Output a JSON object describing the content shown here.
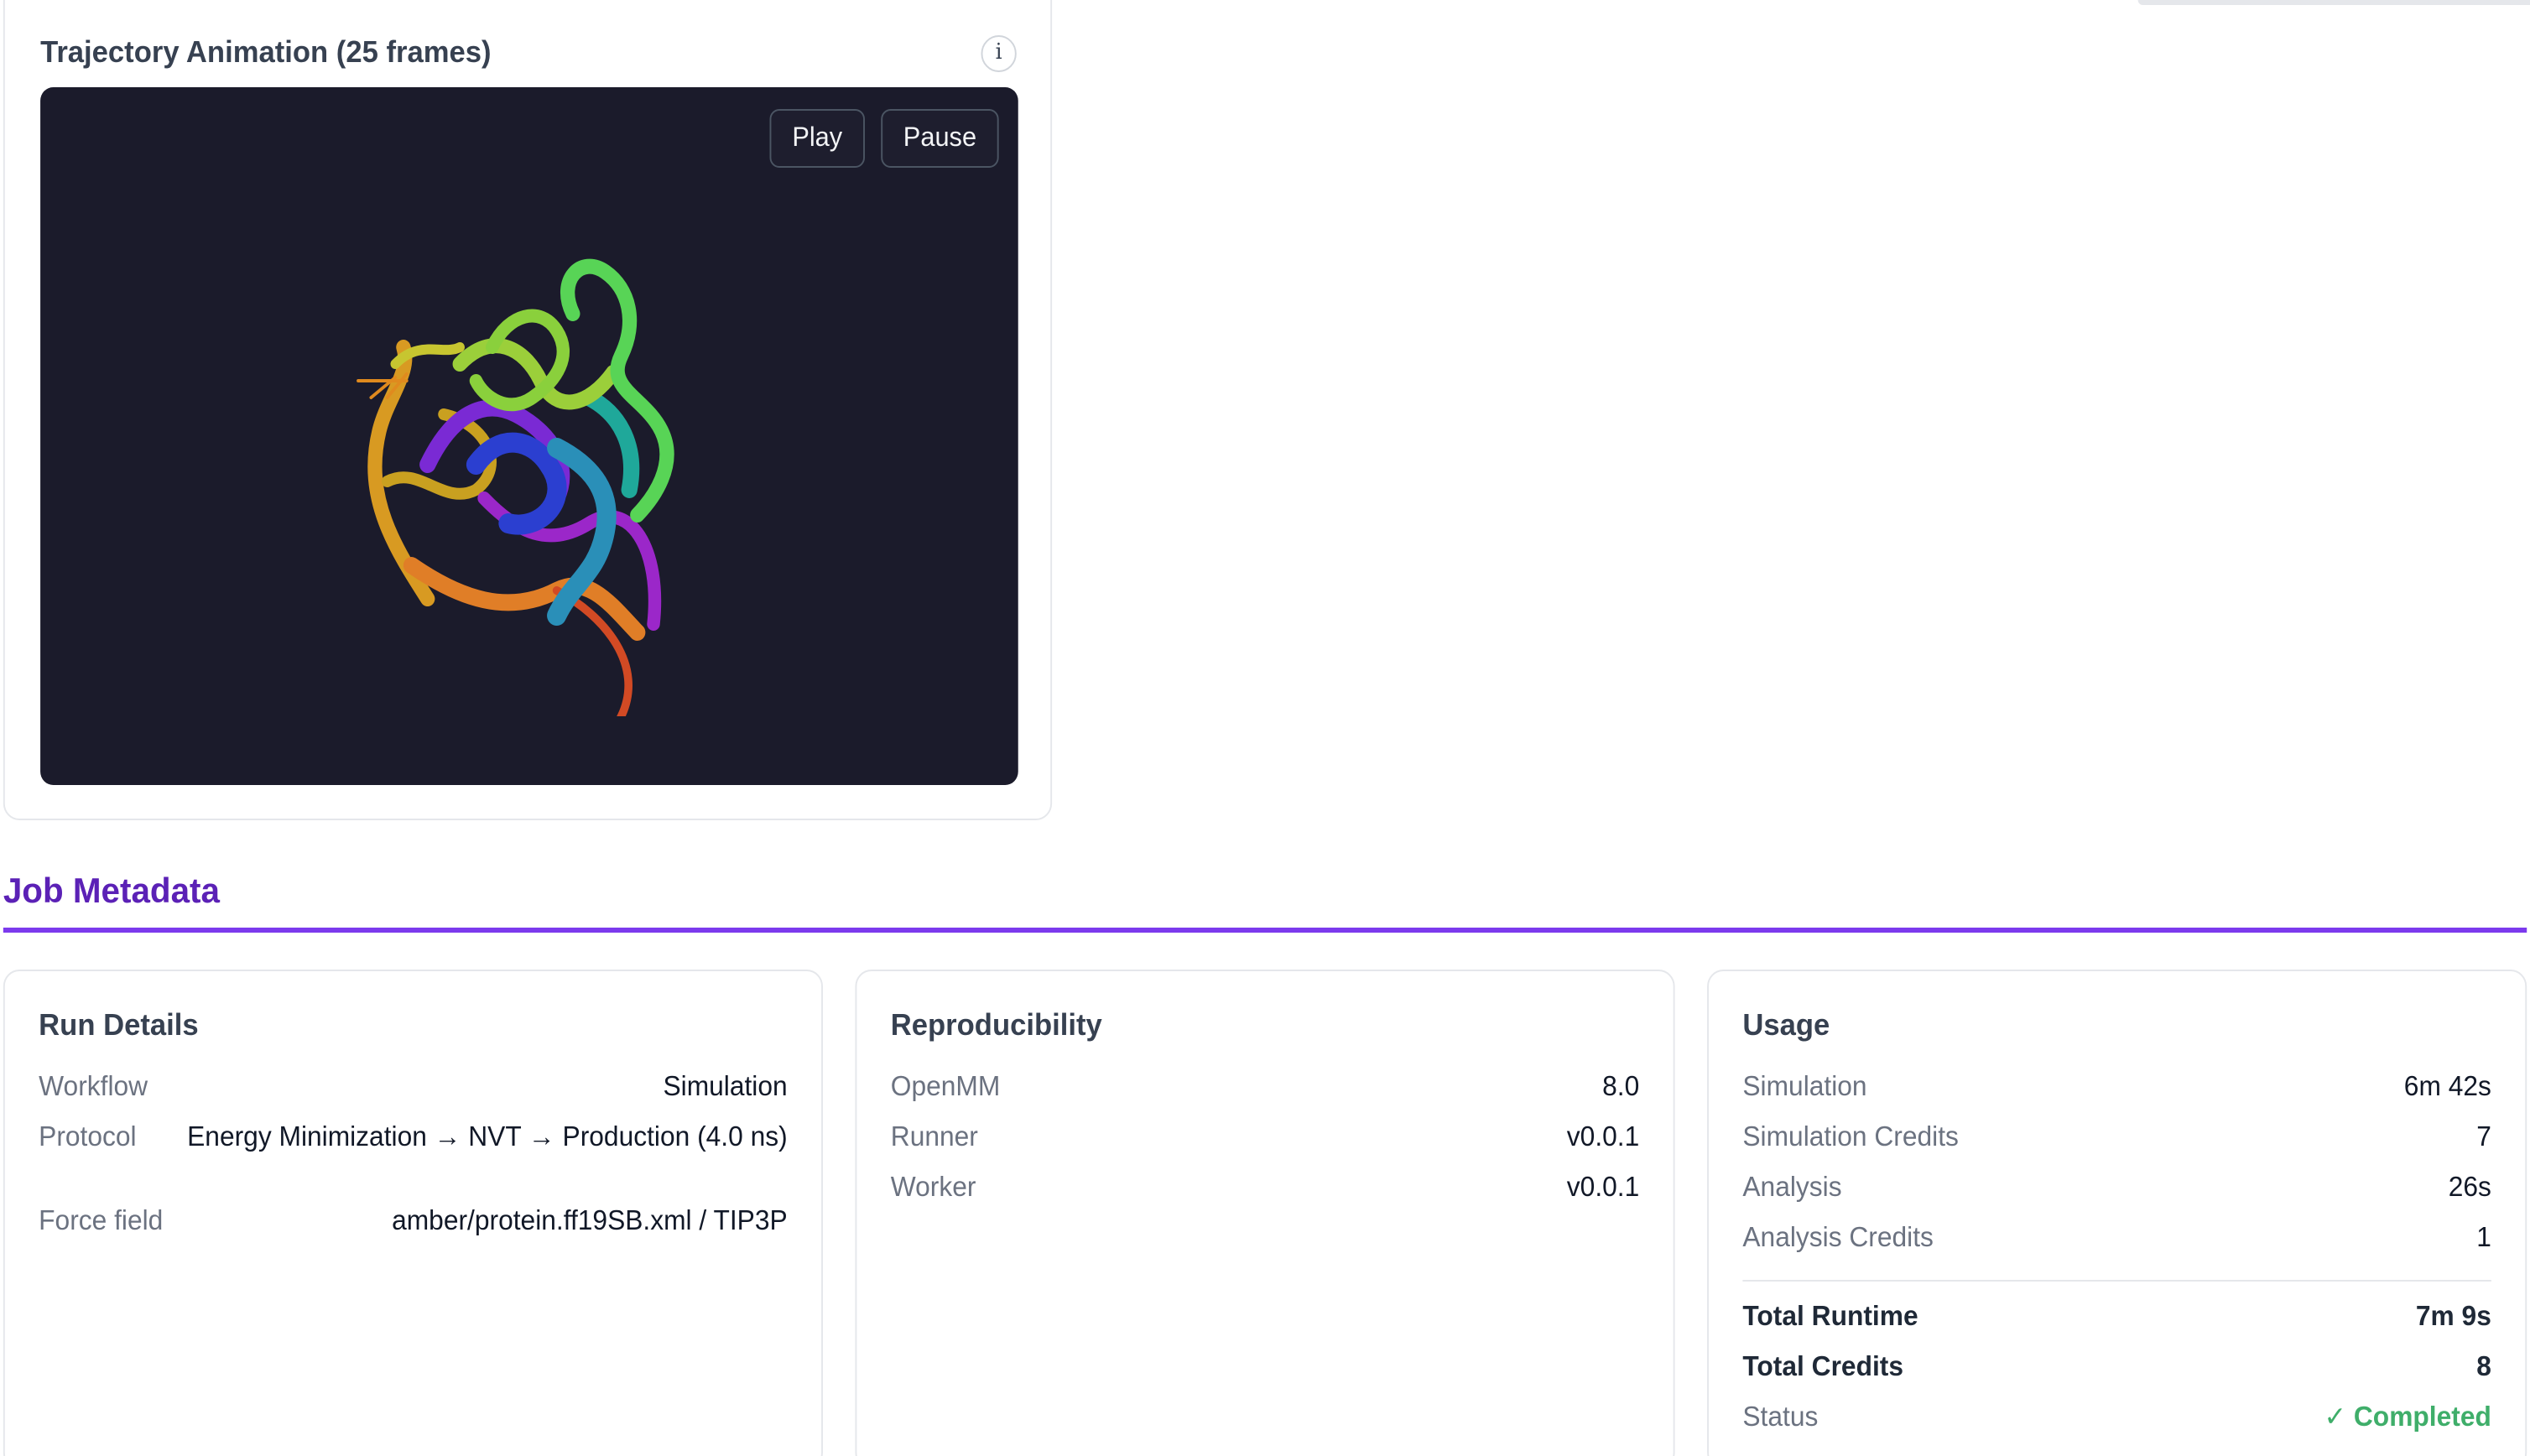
{
  "trajectory": {
    "title": "Trajectory Animation (25 frames)",
    "info_label": "i",
    "play_label": "Play",
    "pause_label": "Pause"
  },
  "metadata": {
    "section_title": "Job Metadata",
    "run_details": {
      "title": "Run Details",
      "workflow_label": "Workflow",
      "workflow_value": "Simulation",
      "protocol_label": "Protocol",
      "protocol_value": "Energy Minimization → NVT → Production (4.0 ns)",
      "forcefield_label": "Force field",
      "forcefield_value": "amber/protein.ff19SB.xml / TIP3P"
    },
    "reproducibility": {
      "title": "Reproducibility",
      "openmm_label": "OpenMM",
      "openmm_value": "8.0",
      "runner_label": "Runner",
      "runner_value": "v0.0.1",
      "worker_label": "Worker",
      "worker_value": "v0.0.1"
    },
    "usage": {
      "title": "Usage",
      "simulation_label": "Simulation",
      "simulation_value": "6m 42s",
      "sim_credits_label": "Simulation Credits",
      "sim_credits_value": "7",
      "analysis_label": "Analysis",
      "analysis_value": "26s",
      "analysis_credits_label": "Analysis Credits",
      "analysis_credits_value": "1",
      "total_runtime_label": "Total Runtime",
      "total_runtime_value": "7m 9s",
      "total_credits_label": "Total Credits",
      "total_credits_value": "8",
      "status_label": "Status",
      "status_value": "✓ Completed"
    }
  },
  "colors": {
    "accent": "#5b21b6",
    "rule": "#7c3aed",
    "viewer_bg": "#1b1b2b",
    "status_ok": "#3fae6a"
  }
}
